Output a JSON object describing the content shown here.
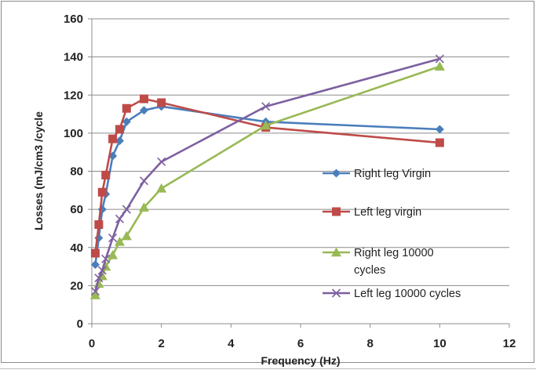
{
  "chart_data": {
    "type": "line",
    "title": "",
    "xlabel": "Frequency (Hz)",
    "ylabel": "Losses (mJ/cm3 /cycle",
    "xlim": [
      0,
      12
    ],
    "ylim": [
      0,
      160
    ],
    "xticks": [
      "0",
      "2",
      "4",
      "6",
      "8",
      "10",
      "12"
    ],
    "yticks": [
      "0",
      "20",
      "40",
      "60",
      "80",
      "100",
      "120",
      "140",
      "160"
    ],
    "grid": "horizontal",
    "legend_position": "right",
    "series": [
      {
        "name": "Right leg Virgin",
        "color": "#4a7ebb",
        "marker": "diamond",
        "x": [
          0.1,
          0.2,
          0.3,
          0.4,
          0.6,
          0.8,
          1,
          1.5,
          2,
          5,
          10
        ],
        "y": [
          31,
          45,
          60,
          68,
          88,
          96,
          106,
          112,
          114,
          106,
          102
        ]
      },
      {
        "name": "Left leg virgin",
        "color": "#be4b48",
        "marker": "square",
        "x": [
          0.1,
          0.2,
          0.3,
          0.4,
          0.6,
          0.8,
          1,
          1.5,
          2,
          5,
          10
        ],
        "y": [
          37,
          52,
          69,
          78,
          97,
          102,
          113,
          118,
          116,
          103,
          95
        ]
      },
      {
        "name": "Right leg 10000 cycles",
        "color": "#98b954",
        "marker": "triangle",
        "x": [
          0.1,
          0.2,
          0.3,
          0.4,
          0.6,
          0.8,
          1,
          1.5,
          2,
          5,
          10
        ],
        "y": [
          15,
          21,
          25,
          30,
          36,
          43,
          46,
          61,
          71,
          104,
          135
        ]
      },
      {
        "name": "Left leg 10000 cycles",
        "color": "#7d60a0",
        "marker": "x",
        "x": [
          0.1,
          0.2,
          0.3,
          0.4,
          0.6,
          0.8,
          1,
          1.5,
          2,
          5,
          10
        ],
        "y": [
          17,
          24,
          28,
          34,
          45,
          55,
          60,
          75,
          85,
          114,
          139
        ]
      }
    ]
  }
}
